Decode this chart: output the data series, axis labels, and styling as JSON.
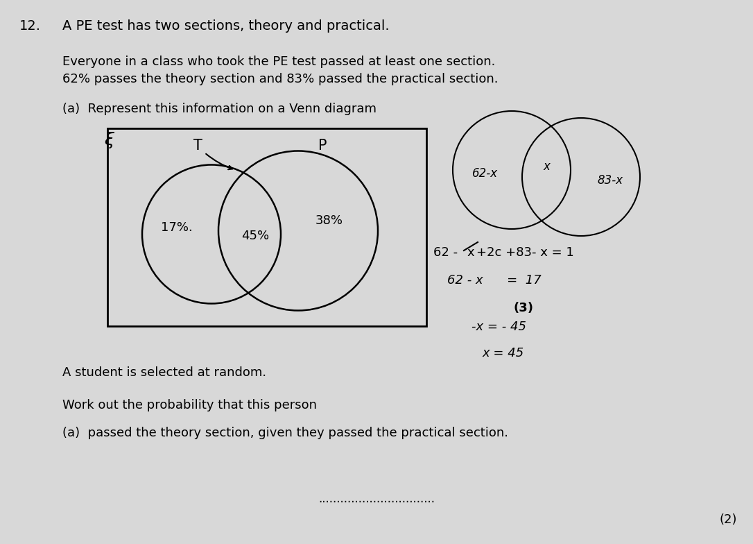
{
  "background_color": "#d8d8d8",
  "page_bg": "#e0e0e0",
  "q_num": "12.",
  "q_text": "A PE test has two sections, theory and practical.",
  "para1_line1": "Everyone in a class who took the PE test passed at least one section.",
  "para1_line2": "62% passes the theory section and 83% passed the practical section.",
  "part_a": "(a)  Represent this information on a Venn diagram",
  "xi_label": "ξ",
  "T_label": "T",
  "P_label": "P",
  "left_val": "17%.",
  "mid_val": "45%",
  "right_val": "38%",
  "right_left_label": "62-x",
  "right_mid_label": "x",
  "right_right_label": "83-x",
  "eq1": "62 -x +2c +83- x = 1",
  "eq2": "62 - x     =  17",
  "eq_marks": "(3)",
  "eq3": "-x = - 45",
  "eq4": "x = 45",
  "student_line": "A student is selected at random.",
  "work_line": "Work out the probability that this person",
  "part_b": "(a)  passed the theory section, given they passed the practical section.",
  "answer_dots": "................................",
  "marks2": "(2)"
}
